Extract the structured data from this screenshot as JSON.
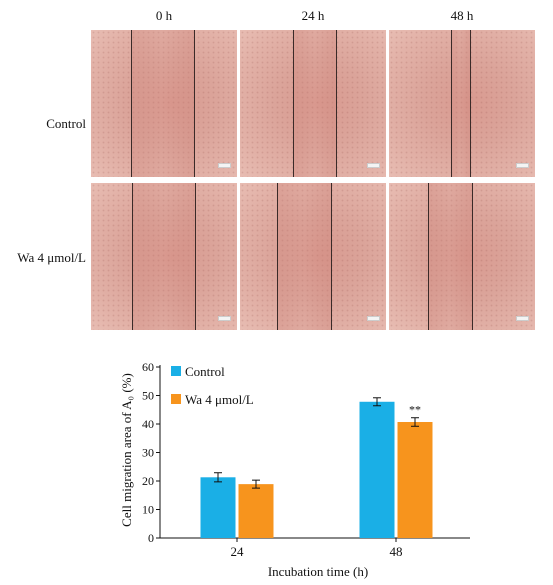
{
  "figure": {
    "columns": [
      "0 h",
      "24 h",
      "48 h"
    ],
    "rows": [
      "Control",
      "Wa 4 μmol/L"
    ]
  },
  "colors": {
    "control": "#1aafe6",
    "wa": "#f7941d"
  },
  "chart_data": {
    "type": "bar",
    "categories": [
      "24",
      "48"
    ],
    "series": [
      {
        "name": "Control",
        "values": [
          21.3,
          47.8
        ],
        "errors": [
          1.6,
          1.4
        ]
      },
      {
        "name": "Wa 4 μmol/L",
        "values": [
          18.9,
          40.7
        ],
        "errors": [
          1.4,
          1.5
        ]
      }
    ],
    "annotations": [
      {
        "category": "48",
        "series": "Wa 4 μmol/L",
        "text": "**"
      }
    ],
    "xlabel": "Incubation time (h)",
    "ylabel": "Cell migration area of A₀ (%)",
    "ylim": [
      0,
      60
    ],
    "yticks": [
      "0",
      "10",
      "20",
      "30",
      "40",
      "50",
      "60"
    ],
    "grid": false,
    "legend": "top-left"
  }
}
